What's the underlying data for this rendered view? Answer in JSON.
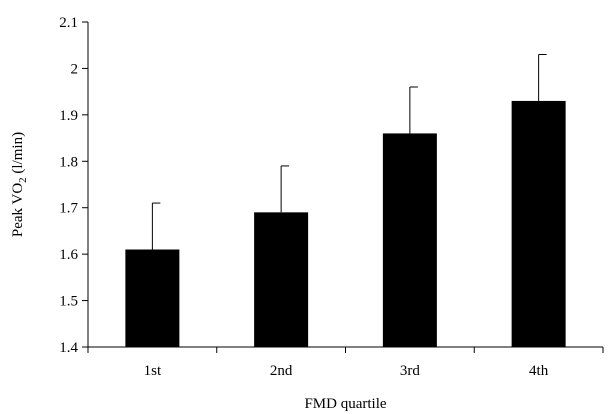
{
  "chart_data": {
    "type": "bar",
    "categories": [
      "1st",
      "2nd",
      "3rd",
      "4th"
    ],
    "values": [
      1.61,
      1.69,
      1.86,
      1.93
    ],
    "error_upper": [
      1.71,
      1.79,
      1.96,
      2.03
    ],
    "title": "",
    "xlabel": "FMD quartile",
    "ylabel": {
      "prefix": "Peak VO",
      "subscript": "2",
      "suffix": " (l/min)"
    },
    "ylim": [
      1.4,
      2.1
    ],
    "yticks": [
      "1.4",
      "1.5",
      "1.6",
      "1.7",
      "1.8",
      "1.9",
      "2",
      "2.1"
    ],
    "grid": false,
    "legend": "none",
    "bar_color": "#000000"
  }
}
